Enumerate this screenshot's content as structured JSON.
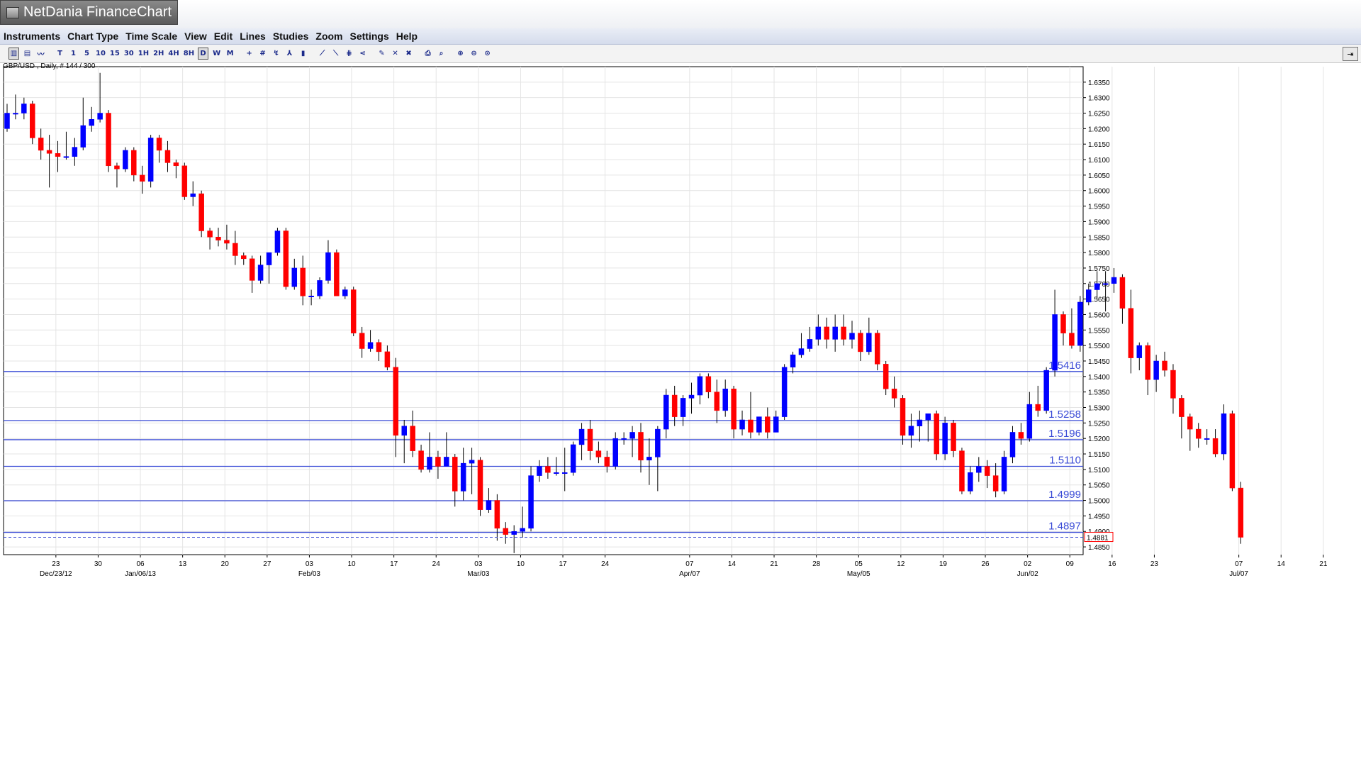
{
  "app": {
    "title": "NetDania FinanceChart"
  },
  "menu": [
    "Instruments",
    "Chart Type",
    "Time Scale",
    "View",
    "Edit",
    "Lines",
    "Studies",
    "Zoom",
    "Settings",
    "Help"
  ],
  "toolbar": {
    "buttons": [
      {
        "label": "▥",
        "name": "chart-type-icon",
        "active": true
      },
      {
        "label": "▤",
        "name": "bar-chart-icon"
      },
      {
        "label": "〰",
        "name": "line-chart-icon"
      },
      {
        "sep": true
      },
      {
        "label": "T",
        "name": "tick-button"
      },
      {
        "label": "1",
        "name": "1min-button"
      },
      {
        "label": "5",
        "name": "5min-button"
      },
      {
        "label": "10",
        "name": "10min-button"
      },
      {
        "label": "15",
        "name": "15min-button"
      },
      {
        "label": "30",
        "name": "30min-button"
      },
      {
        "label": "1H",
        "name": "1h-button"
      },
      {
        "label": "2H",
        "name": "2h-button"
      },
      {
        "label": "4H",
        "name": "4h-button"
      },
      {
        "label": "8H",
        "name": "8h-button"
      },
      {
        "label": "D",
        "name": "daily-button",
        "active": true
      },
      {
        "label": "W",
        "name": "weekly-button"
      },
      {
        "label": "M",
        "name": "monthly-button"
      },
      {
        "sep": true
      },
      {
        "label": "+",
        "name": "crosshair-icon"
      },
      {
        "label": "#",
        "name": "grid-icon"
      },
      {
        "label": "↯",
        "name": "cursor-icon"
      },
      {
        "label": "⅄",
        "name": "study-icon"
      },
      {
        "label": "▮",
        "name": "volume-icon"
      },
      {
        "sep": true
      },
      {
        "label": "⟋",
        "name": "trendline-icon"
      },
      {
        "label": "⟍",
        "name": "channel-icon"
      },
      {
        "label": "⋕",
        "name": "fibonacci-icon"
      },
      {
        "label": "⋖",
        "name": "fan-icon"
      },
      {
        "sep": true
      },
      {
        "label": "✎",
        "name": "edit-lines-icon"
      },
      {
        "label": "✕",
        "name": "delete-icon"
      },
      {
        "label": "✖",
        "name": "delete-all-icon"
      },
      {
        "sep": true
      },
      {
        "label": "⎙",
        "name": "print-icon"
      },
      {
        "label": "⌕",
        "name": "print-preview-icon"
      },
      {
        "sep": true
      },
      {
        "label": "⊕",
        "name": "zoom-in-icon"
      },
      {
        "label": "⊖",
        "name": "zoom-out-icon"
      },
      {
        "label": "⊙",
        "name": "zoom-reset-icon"
      }
    ],
    "right_label": "⇥"
  },
  "instrument_label": "GBP/USD , Daily, # 144 / 300",
  "chart_data": {
    "type": "candlestick",
    "ylim": [
      1.4825,
      1.64
    ],
    "yticks": [
      1.635,
      1.63,
      1.625,
      1.62,
      1.615,
      1.61,
      1.605,
      1.6,
      1.595,
      1.59,
      1.585,
      1.58,
      1.575,
      1.57,
      1.565,
      1.56,
      1.555,
      1.55,
      1.545,
      1.54,
      1.535,
      1.53,
      1.525,
      1.52,
      1.515,
      1.51,
      1.505,
      1.5,
      1.495,
      1.49,
      1.485
    ],
    "ytick_labels": [
      "1.6350",
      "1.6300",
      "1.6250",
      "1.6200",
      "1.6150",
      "1.6100",
      "1.6050",
      "1.6000",
      "1.5950",
      "1.5900",
      "1.5850",
      "1.5800",
      "1.5750",
      "1.5700",
      "1.5650",
      "1.5600",
      "1.5550",
      "1.5500",
      "1.5450",
      "1.5400",
      "1.5350",
      "1.5300",
      "1.5250",
      "1.5200",
      "1.5150",
      "1.5100",
      "1.5050",
      "1.5000",
      "1.4950",
      "1.4900",
      "1.4850"
    ],
    "xticks": [
      {
        "i": 2,
        "label": "23",
        "sub": "Dec/23/12"
      },
      {
        "i": 7,
        "label": "30",
        "sub": ""
      },
      {
        "i": 12,
        "label": "06",
        "sub": "Jan/06/13"
      },
      {
        "i": 17,
        "label": "13",
        "sub": ""
      },
      {
        "i": 22,
        "label": "20",
        "sub": ""
      },
      {
        "i": 27,
        "label": "27",
        "sub": ""
      },
      {
        "i": 32,
        "label": "03",
        "sub": "Feb/03"
      },
      {
        "i": 37,
        "label": "10",
        "sub": ""
      },
      {
        "i": 42,
        "label": "17",
        "sub": ""
      },
      {
        "i": 47,
        "label": "24",
        "sub": ""
      },
      {
        "i": 52,
        "label": "03",
        "sub": "Mar/03"
      },
      {
        "i": 57,
        "label": "10",
        "sub": ""
      },
      {
        "i": 62,
        "label": "17",
        "sub": ""
      },
      {
        "i": 67,
        "label": "24",
        "sub": ""
      },
      {
        "i": 77,
        "label": "07",
        "sub": "Apr/07"
      },
      {
        "i": 82,
        "label": "14",
        "sub": ""
      },
      {
        "i": 87,
        "label": "21",
        "sub": ""
      },
      {
        "i": 92,
        "label": "28",
        "sub": ""
      },
      {
        "i": 97,
        "label": "05",
        "sub": "May/05"
      },
      {
        "i": 102,
        "label": "12",
        "sub": ""
      },
      {
        "i": 107,
        "label": "19",
        "sub": ""
      },
      {
        "i": 112,
        "label": "26",
        "sub": ""
      },
      {
        "i": 117,
        "label": "02",
        "sub": "Jun/02"
      },
      {
        "i": 122,
        "label": "09",
        "sub": ""
      },
      {
        "i": 127,
        "label": "16",
        "sub": ""
      },
      {
        "i": 132,
        "label": "23",
        "sub": ""
      },
      {
        "i": 142,
        "label": "07",
        "sub": "Jul/07"
      },
      {
        "i": 147,
        "label": "14",
        "sub": ""
      },
      {
        "i": 152,
        "label": "21",
        "sub": ""
      }
    ],
    "levels": [
      {
        "value": 1.5416,
        "label": "1.5416"
      },
      {
        "value": 1.5258,
        "label": "1.5258"
      },
      {
        "value": 1.5196,
        "label": "1.5196"
      },
      {
        "value": 1.511,
        "label": "1.5110"
      },
      {
        "value": 1.4999,
        "label": "1.4999"
      },
      {
        "value": 1.4897,
        "label": "1.4897"
      }
    ],
    "last_price": {
      "value": 1.4881,
      "label": "1.4881"
    },
    "grid": true,
    "up_color": "#0000ff",
    "down_color": "#ff0000",
    "level_color": "#3a4bd6",
    "candles": [
      [
        0,
        1.62,
        1.628,
        1.619,
        1.625
      ],
      [
        1,
        1.625,
        1.631,
        1.623,
        1.625
      ],
      [
        2,
        1.625,
        1.63,
        1.623,
        1.628
      ],
      [
        3,
        1.628,
        1.629,
        1.615,
        1.617
      ],
      [
        4,
        1.617,
        1.62,
        1.61,
        1.613
      ],
      [
        5,
        1.613,
        1.618,
        1.601,
        1.612
      ],
      [
        6,
        1.612,
        1.616,
        1.606,
        1.611
      ],
      [
        7,
        1.611,
        1.619,
        1.61,
        1.611
      ],
      [
        8,
        1.611,
        1.617,
        1.608,
        1.614
      ],
      [
        9,
        1.614,
        1.63,
        1.613,
        1.621
      ],
      [
        10,
        1.621,
        1.627,
        1.619,
        1.623
      ],
      [
        11,
        1.623,
        1.638,
        1.622,
        1.625
      ],
      [
        12,
        1.625,
        1.626,
        1.606,
        1.608
      ],
      [
        13,
        1.608,
        1.609,
        1.601,
        1.607
      ],
      [
        14,
        1.607,
        1.614,
        1.606,
        1.613
      ],
      [
        15,
        1.613,
        1.614,
        1.603,
        1.605
      ],
      [
        16,
        1.605,
        1.608,
        1.599,
        1.603
      ],
      [
        17,
        1.603,
        1.618,
        1.601,
        1.617
      ],
      [
        18,
        1.617,
        1.618,
        1.609,
        1.613
      ],
      [
        19,
        1.613,
        1.616,
        1.606,
        1.609
      ],
      [
        20,
        1.609,
        1.61,
        1.604,
        1.608
      ],
      [
        21,
        1.608,
        1.609,
        1.597,
        1.598
      ],
      [
        22,
        1.598,
        1.603,
        1.595,
        1.599
      ],
      [
        23,
        1.599,
        1.6,
        1.585,
        1.587
      ],
      [
        24,
        1.587,
        1.588,
        1.581,
        1.585
      ],
      [
        25,
        1.585,
        1.588,
        1.582,
        1.584
      ],
      [
        26,
        1.584,
        1.589,
        1.581,
        1.583
      ],
      [
        27,
        1.583,
        1.587,
        1.576,
        1.579
      ],
      [
        28,
        1.579,
        1.58,
        1.576,
        1.578
      ],
      [
        29,
        1.578,
        1.579,
        1.567,
        1.571
      ],
      [
        30,
        1.571,
        1.579,
        1.57,
        1.576
      ],
      [
        31,
        1.576,
        1.58,
        1.57,
        1.58
      ],
      [
        32,
        1.58,
        1.588,
        1.579,
        1.587
      ],
      [
        33,
        1.587,
        1.588,
        1.568,
        1.569
      ],
      [
        34,
        1.569,
        1.578,
        1.568,
        1.575
      ],
      [
        35,
        1.575,
        1.579,
        1.563,
        1.566
      ],
      [
        36,
        1.566,
        1.568,
        1.563,
        1.566
      ],
      [
        37,
        1.566,
        1.572,
        1.565,
        1.571
      ],
      [
        38,
        1.571,
        1.584,
        1.57,
        1.58
      ],
      [
        39,
        1.58,
        1.581,
        1.566,
        1.566
      ],
      [
        40,
        1.566,
        1.569,
        1.565,
        1.568
      ],
      [
        41,
        1.568,
        1.569,
        1.553,
        1.554
      ],
      [
        42,
        1.554,
        1.556,
        1.546,
        1.549
      ],
      [
        43,
        1.549,
        1.555,
        1.548,
        1.551
      ],
      [
        44,
        1.551,
        1.552,
        1.545,
        1.548
      ],
      [
        45,
        1.548,
        1.55,
        1.542,
        1.543
      ],
      [
        46,
        1.543,
        1.546,
        1.514,
        1.521
      ],
      [
        47,
        1.521,
        1.526,
        1.512,
        1.524
      ],
      [
        48,
        1.524,
        1.529,
        1.514,
        1.516
      ],
      [
        49,
        1.516,
        1.518,
        1.509,
        1.51
      ],
      [
        50,
        1.51,
        1.522,
        1.509,
        1.514
      ],
      [
        51,
        1.514,
        1.516,
        1.507,
        1.511
      ],
      [
        52,
        1.511,
        1.522,
        1.511,
        1.514
      ],
      [
        53,
        1.514,
        1.515,
        1.498,
        1.503
      ],
      [
        54,
        1.503,
        1.517,
        1.5,
        1.512
      ],
      [
        55,
        1.512,
        1.517,
        1.502,
        1.513
      ],
      [
        56,
        1.513,
        1.514,
        1.495,
        1.497
      ],
      [
        57,
        1.497,
        1.504,
        1.496,
        1.5
      ],
      [
        58,
        1.5,
        1.502,
        1.487,
        1.491
      ],
      [
        59,
        1.491,
        1.493,
        1.486,
        1.489
      ],
      [
        60,
        1.489,
        1.492,
        1.483,
        1.49
      ],
      [
        61,
        1.49,
        1.498,
        1.488,
        1.491
      ],
      [
        62,
        1.491,
        1.511,
        1.49,
        1.508
      ],
      [
        63,
        1.508,
        1.513,
        1.506,
        1.511
      ],
      [
        64,
        1.511,
        1.514,
        1.507,
        1.509
      ],
      [
        65,
        1.509,
        1.514,
        1.508,
        1.509
      ],
      [
        66,
        1.509,
        1.517,
        1.503,
        1.509
      ],
      [
        67,
        1.509,
        1.519,
        1.508,
        1.518
      ],
      [
        68,
        1.518,
        1.525,
        1.513,
        1.523
      ],
      [
        69,
        1.523,
        1.526,
        1.513,
        1.516
      ],
      [
        70,
        1.516,
        1.519,
        1.512,
        1.514
      ],
      [
        71,
        1.514,
        1.516,
        1.509,
        1.511
      ],
      [
        72,
        1.511,
        1.522,
        1.51,
        1.52
      ],
      [
        73,
        1.52,
        1.522,
        1.518,
        1.52
      ],
      [
        74,
        1.52,
        1.524,
        1.514,
        1.522
      ],
      [
        75,
        1.522,
        1.525,
        1.509,
        1.513
      ],
      [
        76,
        1.513,
        1.52,
        1.505,
        1.514
      ],
      [
        77,
        1.514,
        1.524,
        1.503,
        1.523
      ],
      [
        78,
        1.523,
        1.536,
        1.52,
        1.534
      ],
      [
        79,
        1.534,
        1.537,
        1.524,
        1.527
      ],
      [
        80,
        1.527,
        1.534,
        1.524,
        1.533
      ],
      [
        81,
        1.533,
        1.538,
        1.528,
        1.534
      ],
      [
        82,
        1.534,
        1.541,
        1.531,
        1.54
      ],
      [
        83,
        1.54,
        1.541,
        1.533,
        1.535
      ],
      [
        84,
        1.535,
        1.539,
        1.525,
        1.529
      ],
      [
        85,
        1.529,
        1.539,
        1.527,
        1.536
      ],
      [
        86,
        1.536,
        1.537,
        1.52,
        1.523
      ],
      [
        87,
        1.523,
        1.529,
        1.521,
        1.526
      ],
      [
        88,
        1.526,
        1.535,
        1.52,
        1.522
      ],
      [
        89,
        1.522,
        1.527,
        1.521,
        1.527
      ],
      [
        90,
        1.527,
        1.53,
        1.52,
        1.522
      ],
      [
        91,
        1.522,
        1.529,
        1.522,
        1.527
      ],
      [
        92,
        1.527,
        1.544,
        1.526,
        1.543
      ],
      [
        93,
        1.543,
        1.548,
        1.541,
        1.547
      ],
      [
        94,
        1.547,
        1.554,
        1.546,
        1.549
      ],
      [
        95,
        1.549,
        1.556,
        1.548,
        1.552
      ],
      [
        96,
        1.552,
        1.56,
        1.55,
        1.556
      ],
      [
        97,
        1.556,
        1.559,
        1.549,
        1.552
      ],
      [
        98,
        1.552,
        1.56,
        1.548,
        1.556
      ],
      [
        99,
        1.556,
        1.56,
        1.55,
        1.552
      ],
      [
        100,
        1.552,
        1.558,
        1.549,
        1.554
      ],
      [
        101,
        1.554,
        1.555,
        1.545,
        1.548
      ],
      [
        102,
        1.548,
        1.559,
        1.547,
        1.554
      ],
      [
        103,
        1.554,
        1.555,
        1.542,
        1.544
      ],
      [
        104,
        1.544,
        1.545,
        1.534,
        1.536
      ],
      [
        105,
        1.536,
        1.54,
        1.53,
        1.533
      ],
      [
        106,
        1.533,
        1.534,
        1.518,
        1.521
      ],
      [
        107,
        1.521,
        1.528,
        1.517,
        1.524
      ],
      [
        108,
        1.524,
        1.529,
        1.519,
        1.526
      ],
      [
        109,
        1.526,
        1.528,
        1.519,
        1.528
      ],
      [
        110,
        1.528,
        1.529,
        1.513,
        1.515
      ],
      [
        111,
        1.515,
        1.527,
        1.513,
        1.525
      ],
      [
        112,
        1.525,
        1.526,
        1.514,
        1.516
      ],
      [
        113,
        1.516,
        1.517,
        1.502,
        1.503
      ],
      [
        114,
        1.503,
        1.511,
        1.502,
        1.509
      ],
      [
        115,
        1.509,
        1.514,
        1.506,
        1.511
      ],
      [
        116,
        1.511,
        1.513,
        1.504,
        1.508
      ],
      [
        117,
        1.508,
        1.512,
        1.501,
        1.503
      ],
      [
        118,
        1.503,
        1.516,
        1.502,
        1.514
      ],
      [
        119,
        1.514,
        1.524,
        1.512,
        1.522
      ],
      [
        120,
        1.522,
        1.525,
        1.518,
        1.52
      ],
      [
        121,
        1.52,
        1.535,
        1.519,
        1.531
      ],
      [
        122,
        1.531,
        1.537,
        1.527,
        1.529
      ],
      [
        123,
        1.529,
        1.543,
        1.528,
        1.542
      ],
      [
        124,
        1.542,
        1.568,
        1.54,
        1.56
      ],
      [
        125,
        1.56,
        1.561,
        1.55,
        1.554
      ],
      [
        126,
        1.554,
        1.562,
        1.549,
        1.55
      ],
      [
        127,
        1.55,
        1.566,
        1.548,
        1.564
      ],
      [
        128,
        1.564,
        1.57,
        1.563,
        1.568
      ],
      [
        129,
        1.568,
        1.574,
        1.565,
        1.57
      ],
      [
        130,
        1.57,
        1.574,
        1.561,
        1.57
      ],
      [
        131,
        1.57,
        1.575,
        1.567,
        1.572
      ],
      [
        132,
        1.572,
        1.573,
        1.557,
        1.562
      ],
      [
        133,
        1.562,
        1.568,
        1.541,
        1.546
      ],
      [
        134,
        1.546,
        1.551,
        1.542,
        1.55
      ],
      [
        135,
        1.55,
        1.551,
        1.534,
        1.539
      ],
      [
        136,
        1.539,
        1.547,
        1.535,
        1.545
      ],
      [
        137,
        1.545,
        1.548,
        1.54,
        1.542
      ],
      [
        138,
        1.542,
        1.544,
        1.528,
        1.533
      ],
      [
        139,
        1.533,
        1.534,
        1.52,
        1.527
      ],
      [
        140,
        1.527,
        1.528,
        1.516,
        1.523
      ],
      [
        141,
        1.523,
        1.525,
        1.517,
        1.52
      ],
      [
        142,
        1.52,
        1.523,
        1.518,
        1.52
      ],
      [
        143,
        1.52,
        1.523,
        1.514,
        1.515
      ],
      [
        144,
        1.515,
        1.531,
        1.513,
        1.528
      ],
      [
        145,
        1.528,
        1.529,
        1.503,
        1.504
      ],
      [
        146,
        1.504,
        1.506,
        1.486,
        1.4881
      ]
    ]
  }
}
